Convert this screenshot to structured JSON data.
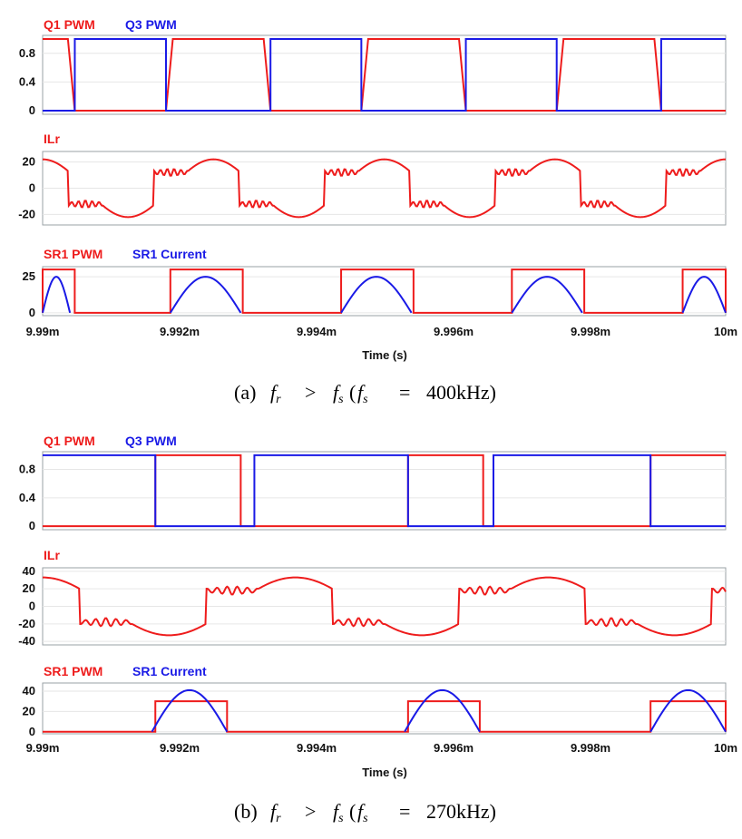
{
  "colors": {
    "red": "#ee1c1c",
    "blue": "#1a1ae6",
    "frame": "#9aa0a6",
    "grid": "#e6e6e6"
  },
  "figures": [
    {
      "caption": {
        "lead": "(a)",
        "op1": ">",
        "op2": "=",
        "value": "400kHz)"
      },
      "xlabel": "Time (s)",
      "xticks": [
        "9.99m",
        "9.992m",
        "9.994m",
        "9.996m",
        "9.998m",
        "10m"
      ]
    },
    {
      "caption": {
        "lead": "(b)",
        "op1": ">",
        "op2": "=",
        "value": "270kHz)"
      },
      "xlabel": "Time (s)",
      "xticks": [
        "9.99m",
        "9.992m",
        "9.994m",
        "9.996m",
        "9.998m",
        "10m"
      ]
    }
  ],
  "chart_data": [
    {
      "type": "line",
      "figure": "(a)",
      "title": "Q1 PWM / Q3 PWM",
      "series": [
        {
          "name": "Q1 PWM",
          "color": "#ee1c1c",
          "x": [
            9.99,
            9.99037,
            9.99047,
            9.991806,
            9.991906,
            9.993236,
            9.993336,
            9.994666,
            9.994766,
            9.996096,
            9.996196,
            9.997526,
            9.997626,
            9.998956,
            9.999056,
            10.0
          ],
          "values": [
            1,
            1,
            0,
            0,
            1,
            1,
            0,
            0,
            1,
            1,
            0,
            0,
            1,
            1,
            0,
            0
          ]
        },
        {
          "name": "Q3 PWM",
          "color": "#1a1ae6",
          "x": [
            9.99,
            9.990471,
            9.990471,
            9.991806,
            9.991806,
            9.993336,
            9.993336,
            9.994666,
            9.994666,
            9.996196,
            9.996196,
            9.997526,
            9.997526,
            9.999056,
            9.999056,
            10.0
          ],
          "values": [
            0,
            0,
            1,
            1,
            0,
            0,
            1,
            1,
            0,
            0,
            1,
            1,
            0,
            0,
            1,
            1
          ]
        }
      ],
      "yticks": [
        0,
        0.4,
        0.8
      ],
      "ylim": [
        -0.05,
        1.05
      ],
      "xlim": [
        9.99,
        10.0
      ]
    },
    {
      "type": "line",
      "figure": "(a)",
      "title": "ILr",
      "series": [
        {
          "name": "ILr",
          "color": "#ee1c1c",
          "shape": "sine_with_ripple",
          "amplitude": 22,
          "period_ms": 0.0025,
          "ripple_amp": 3,
          "values_sample": [
            20,
            14,
            10,
            0,
            -12,
            -20,
            -22,
            -18,
            -10,
            0,
            12,
            20,
            22,
            20,
            14
          ]
        }
      ],
      "yticks": [
        -20,
        0,
        20
      ],
      "ylim": [
        -28,
        28
      ],
      "xlim": [
        9.99,
        10.0
      ]
    },
    {
      "type": "line",
      "figure": "(a)",
      "title": "SR1 PWM / SR1 Current",
      "series": [
        {
          "name": "SR1 PWM",
          "color": "#ee1c1c",
          "on_intervals": [
            [
              9.99,
              9.99047
            ],
            [
              9.99187,
              9.99293
            ],
            [
              9.99437,
              9.99543
            ],
            [
              9.99687,
              9.99793
            ],
            [
              9.99937,
              10.0
            ]
          ],
          "on_value": 30
        },
        {
          "name": "SR1 Current",
          "color": "#1a1ae6",
          "peak": 25,
          "pulses": [
            [
              9.99,
              9.9904
            ],
            [
              9.99187,
              9.9929
            ],
            [
              9.99437,
              9.9954
            ],
            [
              9.99687,
              9.9979
            ],
            [
              9.99937,
              10.0
            ]
          ]
        }
      ],
      "yticks": [
        0,
        25
      ],
      "ylim": [
        -2,
        32
      ],
      "xlim": [
        9.99,
        10.0
      ]
    },
    {
      "type": "line",
      "figure": "(b)",
      "title": "Q1 PWM / Q3 PWM",
      "series": [
        {
          "name": "Q1 PWM",
          "color": "#ee1c1c",
          "x": [
            9.99,
            9.99165,
            9.99165,
            9.9929,
            9.9929,
            9.99535,
            9.99535,
            9.99645,
            9.99645,
            9.9989,
            9.9989,
            10.0
          ],
          "values": [
            0,
            0,
            1,
            1,
            0,
            0,
            1,
            1,
            0,
            0,
            1,
            1
          ]
        },
        {
          "name": "Q3 PWM",
          "color": "#1a1ae6",
          "x": [
            9.99,
            9.99165,
            9.99165,
            9.9931,
            9.9931,
            9.99535,
            9.99535,
            9.9966,
            9.9966,
            9.9989,
            9.9989,
            10.0
          ],
          "values": [
            1,
            1,
            0,
            0,
            1,
            1,
            0,
            0,
            1,
            1,
            0,
            0
          ]
        }
      ],
      "yticks": [
        0,
        0.4,
        0.8
      ],
      "ylim": [
        -0.05,
        1.05
      ],
      "xlim": [
        9.99,
        10.0
      ]
    },
    {
      "type": "line",
      "figure": "(b)",
      "title": "ILr",
      "series": [
        {
          "name": "ILr",
          "color": "#ee1c1c",
          "shape": "sine_with_ripple",
          "amplitude": 33,
          "period_ms": 0.0037,
          "ripple_amp": 5,
          "values_sample": [
            -20,
            -30,
            -20,
            -10,
            -15,
            -20,
            0,
            20,
            33,
            28,
            20,
            22,
            20,
            0,
            -20,
            -30
          ]
        }
      ],
      "yticks": [
        -40,
        -20,
        0,
        20,
        40
      ],
      "ylim": [
        -44,
        44
      ],
      "xlim": [
        9.99,
        10.0
      ]
    },
    {
      "type": "line",
      "figure": "(b)",
      "title": "SR1 PWM / SR1 Current",
      "series": [
        {
          "name": "SR1 PWM",
          "color": "#ee1c1c",
          "on_intervals": [
            [
              9.99165,
              9.9927
            ],
            [
              9.99535,
              9.9964
            ],
            [
              9.9989,
              10.0
            ]
          ],
          "on_value": 30
        },
        {
          "name": "SR1 Current",
          "color": "#1a1ae6",
          "peak": 41,
          "pulses": [
            [
              9.9916,
              9.9927
            ],
            [
              9.9953,
              9.9964
            ],
            [
              9.9989,
              10.0
            ]
          ]
        }
      ],
      "yticks": [
        0,
        20,
        40
      ],
      "ylim": [
        -2,
        48
      ],
      "xlim": [
        9.99,
        10.0
      ]
    }
  ],
  "legends": [
    {
      "items": [
        "Q1 PWM",
        "Q3 PWM"
      ]
    },
    {
      "items": [
        "ILr"
      ]
    },
    {
      "items": [
        "SR1 PWM",
        "SR1 Current"
      ]
    },
    {
      "items": [
        "Q1 PWM",
        "Q3 PWM"
      ]
    },
    {
      "items": [
        "ILr"
      ]
    },
    {
      "items": [
        "SR1 PWM",
        "SR1 Current"
      ]
    }
  ]
}
